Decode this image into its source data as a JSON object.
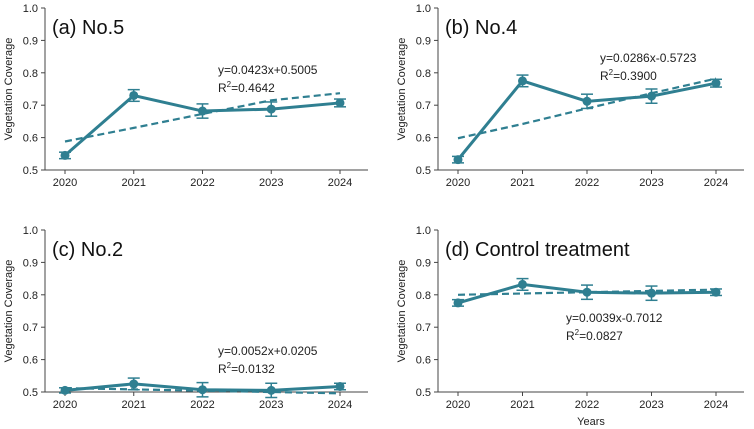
{
  "colors": {
    "series": "#2f7f91",
    "axis": "#444444",
    "text": "#222222"
  },
  "chart_data": [
    {
      "type": "line",
      "title": "(a) No.5",
      "xlabel": "",
      "ylabel": "Vegetation Coverage",
      "x": [
        2020,
        2021,
        2022,
        2023,
        2024
      ],
      "values": [
        0.545,
        0.73,
        0.682,
        0.688,
        0.707
      ],
      "errors": [
        0.01,
        0.018,
        0.022,
        0.022,
        0.012
      ],
      "trend": [
        0.588,
        0.63,
        0.673,
        0.715,
        0.737
      ],
      "equation": "y=0.0423x+0.5005",
      "r2_prefix": "R",
      "r2_sup": "2",
      "r2_value": "=0.4642",
      "ylim": [
        0.5,
        1.0
      ],
      "yticks": [
        "0.5",
        "0.6",
        "0.7",
        "0.8",
        "0.9",
        "1.0"
      ],
      "xticks": [
        "2020",
        "2021",
        "2022",
        "2023",
        "2024"
      ]
    },
    {
      "type": "line",
      "title": "(b) No.4",
      "xlabel": "",
      "ylabel": "Vegetation Coverage",
      "x": [
        2020,
        2021,
        2022,
        2023,
        2024
      ],
      "values": [
        0.532,
        0.775,
        0.712,
        0.728,
        0.768
      ],
      "errors": [
        0.01,
        0.018,
        0.022,
        0.022,
        0.012
      ],
      "trend": [
        0.598,
        0.642,
        0.69,
        0.737,
        0.782
      ],
      "equation": "y=0.0286x-0.5723",
      "r2_prefix": "R",
      "r2_sup": "2",
      "r2_value": "=0.3900",
      "ylim": [
        0.5,
        1.0
      ],
      "yticks": [
        "0.5",
        "0.6",
        "0.7",
        "0.8",
        "0.9",
        "1.0"
      ],
      "xticks": [
        "2020",
        "2021",
        "2022",
        "2023",
        "2024"
      ]
    },
    {
      "type": "line",
      "title": "(c) No.2",
      "xlabel": "",
      "ylabel": "Vegetation Coverage",
      "x": [
        2020,
        2021,
        2022,
        2023,
        2024
      ],
      "values": [
        0.505,
        0.525,
        0.507,
        0.505,
        0.517
      ],
      "errors": [
        0.008,
        0.018,
        0.022,
        0.022,
        0.01
      ],
      "trend": [
        0.512,
        0.508,
        0.504,
        0.5,
        0.496
      ],
      "equation": "y=0.0052x+0.0205",
      "r2_prefix": "R",
      "r2_sup": "2",
      "r2_value": "=0.0132",
      "ylim": [
        0.5,
        1.0
      ],
      "yticks": [
        "0.5",
        "0.6",
        "0.7",
        "0.8",
        "0.9",
        "1.0"
      ],
      "xticks": [
        "2020",
        "2021",
        "2022",
        "2023",
        "2024"
      ]
    },
    {
      "type": "line",
      "title": "(d) Control treatment",
      "xlabel": "Years",
      "ylabel": "Vegetation Coverage",
      "x": [
        2020,
        2021,
        2022,
        2023,
        2024
      ],
      "values": [
        0.775,
        0.832,
        0.808,
        0.805,
        0.808
      ],
      "errors": [
        0.01,
        0.018,
        0.022,
        0.022,
        0.01
      ],
      "trend": [
        0.8,
        0.804,
        0.808,
        0.812,
        0.816
      ],
      "equation": "y=0.0039x-0.7012",
      "r2_prefix": "R",
      "r2_sup": "2",
      "r2_value": "=0.0827",
      "ylim": [
        0.5,
        1.0
      ],
      "yticks": [
        "0.5",
        "0.6",
        "0.7",
        "0.8",
        "0.9",
        "1.0"
      ],
      "xticks": [
        "2020",
        "2021",
        "2022",
        "2023",
        "2024"
      ]
    }
  ]
}
